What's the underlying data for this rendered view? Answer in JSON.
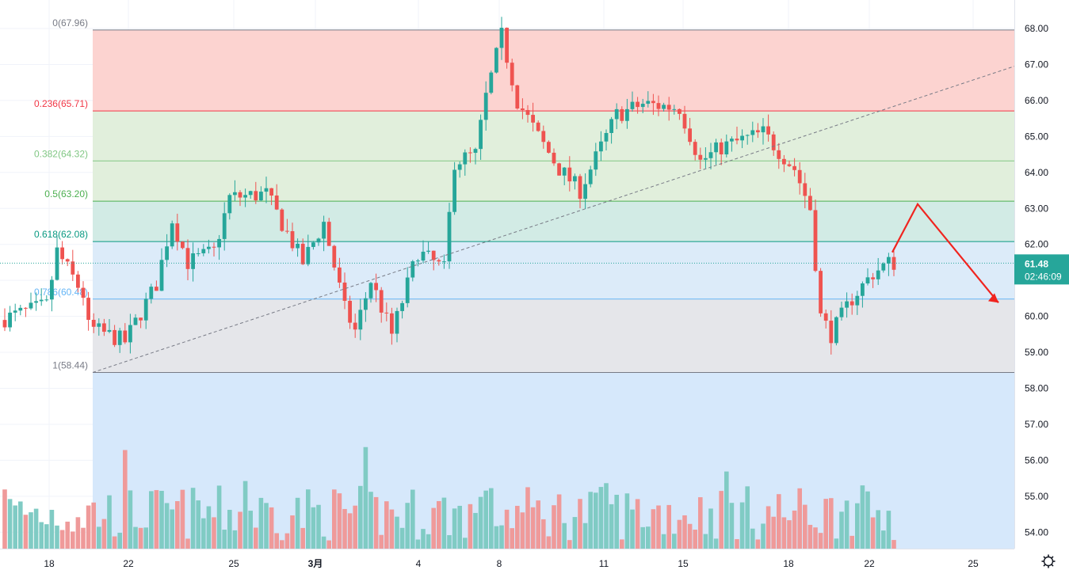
{
  "chart_data": {
    "type": "candlestick",
    "price_axis": {
      "ticks": [
        "68.00",
        "67.00",
        "66.00",
        "65.00",
        "64.00",
        "63.00",
        "62.00",
        "61.00",
        "60.00",
        "59.00",
        "58.00",
        "57.00",
        "56.00",
        "55.00",
        "54.00"
      ],
      "range": [
        53.6,
        68.5
      ]
    },
    "time_axis": {
      "ticks": [
        "18",
        "22",
        "25",
        "3月",
        "4",
        "8",
        "11",
        "15",
        "18",
        "22",
        "25"
      ]
    },
    "last_price": {
      "value": "61.48",
      "countdown": "02:46:09",
      "color": "#26a69a"
    },
    "fibonacci": {
      "levels": [
        {
          "ratio": "0",
          "price": 67.96,
          "label": "0(67.96)",
          "color": "#787b86",
          "zone": "#fcd3d0"
        },
        {
          "ratio": "0.236",
          "price": 65.71,
          "label": "0.236(65.71)",
          "color": "#f23645",
          "zone": "#e1efdc"
        },
        {
          "ratio": "0.382",
          "price": 64.32,
          "label": "0.382(64.32)",
          "color": "#81c784",
          "zone": "#e1efdc"
        },
        {
          "ratio": "0.5",
          "price": 63.2,
          "label": "0.5(63.20)",
          "color": "#4caf50",
          "zone": "#d2ebe5"
        },
        {
          "ratio": "0.618",
          "price": 62.08,
          "label": "0.618(62.08)",
          "color": "#089981",
          "zone": "#dcebf9"
        },
        {
          "ratio": "0.786",
          "price": 60.48,
          "label": "0.786(60.48)",
          "color": "#64b5f6",
          "zone": "#e5e6ea"
        },
        {
          "ratio": "1",
          "price": 58.44,
          "label": "1(58.44)",
          "color": "#787b86",
          "zone": "#d6e8fb"
        }
      ]
    },
    "trendline": {
      "from_price": 58.44,
      "to_price": 66.95,
      "style": "dashed"
    },
    "projection_arrow": {
      "points": [
        61.78,
        63.12,
        60.38
      ],
      "color": "#f0241f"
    },
    "colors": {
      "up": "#26a69a",
      "down": "#ef5350",
      "up_volume": "#80cbc4",
      "down_volume": "#ef9a9a"
    }
  }
}
